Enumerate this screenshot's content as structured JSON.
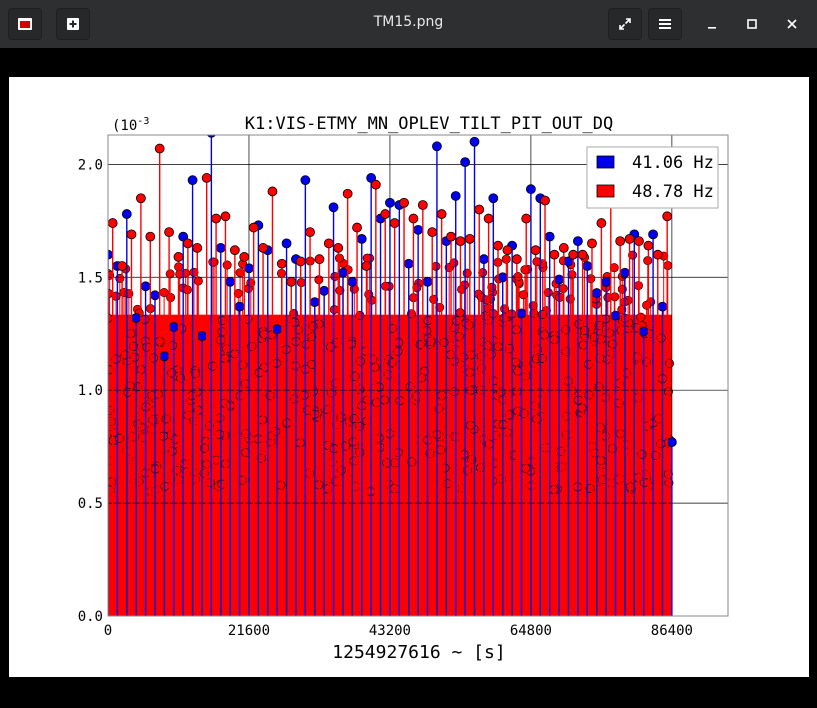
{
  "window": {
    "title": "TM15.png",
    "app_icon": "image-viewer-icon",
    "new_tab_icon": "plus-box-icon",
    "fullscreen_icon": "expand-arrows-icon",
    "menu_icon": "hamburger-icon",
    "minimize_icon": "minimize-icon",
    "maximize_icon": "maximize-icon",
    "close_icon": "close-icon"
  },
  "chart_data": {
    "type": "scatter",
    "title": "K1:VIS-ETMY_MN_OPLEV_TILT_PIT_OUT_DQ",
    "xlabel": "1254927616 ~ [s]",
    "ylabel": "",
    "y_scale_label": "(10",
    "y_scale_exp": "-3",
    "xlim": [
      0,
      95000
    ],
    "ylim": [
      0,
      0.00213
    ],
    "xticks": [
      0,
      21600,
      43200,
      64800,
      86400
    ],
    "xtick_labels": [
      "0",
      "21600",
      "43200",
      "64800",
      "86400"
    ],
    "yticks": [
      0,
      0.0005,
      0.001,
      0.0015,
      0.002
    ],
    "ytick_labels": [
      "0.0",
      "0.5",
      "1.0",
      "1.5",
      "2.0"
    ],
    "grid": true,
    "legend_position": "top-right",
    "style": "stem",
    "series": [
      {
        "name": "41.06 Hz",
        "color": "#0000ee",
        "x": [
          0,
          1440,
          2880,
          4320,
          5760,
          7200,
          8640,
          10080,
          11520,
          12960,
          14400,
          15840,
          17280,
          18720,
          20160,
          21600,
          23040,
          24480,
          25920,
          27360,
          28800,
          30240,
          31680,
          33120,
          34560,
          36000,
          37440,
          38880,
          40320,
          41760,
          43200,
          44640,
          46080,
          47520,
          48960,
          50400,
          51840,
          53280,
          54720,
          56160,
          57600,
          59040,
          60480,
          61920,
          63360,
          64800,
          66240,
          67680,
          69120,
          70560,
          72000,
          73440,
          74880,
          76320,
          77760,
          79200,
          80640,
          82080,
          83520,
          84960,
          86400
        ],
        "y": [
          0.0016,
          0.00155,
          0.00178,
          0.00132,
          0.00146,
          0.00142,
          0.00115,
          0.00128,
          0.00168,
          0.00193,
          0.00124,
          0.00214,
          0.00163,
          0.00148,
          0.00137,
          0.00154,
          0.00173,
          0.00162,
          0.00127,
          0.00165,
          0.00158,
          0.00193,
          0.00139,
          0.00144,
          0.00181,
          0.00152,
          0.00148,
          0.00167,
          0.00194,
          0.00176,
          0.00183,
          0.00182,
          0.00156,
          0.00171,
          0.00148,
          0.00208,
          0.00166,
          0.00186,
          0.00201,
          0.0021,
          0.00158,
          0.00185,
          0.0015,
          0.00164,
          0.00134,
          0.00189,
          0.00185,
          0.00168,
          0.00149,
          0.00157,
          0.00166,
          0.00155,
          0.00143,
          0.00148,
          0.00133,
          0.00152,
          0.00169,
          0.00126,
          0.00169,
          0.00137,
          0.00077
        ]
      },
      {
        "name": "48.78 Hz",
        "color": "#ff0000",
        "x": [
          720,
          2160,
          3600,
          5040,
          6480,
          7920,
          9360,
          10800,
          12240,
          13680,
          15120,
          16560,
          18000,
          19440,
          20880,
          22320,
          23760,
          25200,
          26640,
          28080,
          29520,
          30960,
          32400,
          33840,
          35280,
          36720,
          38160,
          39600,
          41040,
          42480,
          43920,
          45360,
          46800,
          48240,
          49680,
          51120,
          52560,
          54000,
          55440,
          56880,
          58320,
          59760,
          61200,
          62640,
          64080,
          65520,
          66960,
          68400,
          69840,
          71280,
          72720,
          74160,
          75600,
          77040,
          78480,
          79920,
          81360,
          82800,
          84240,
          85680
        ],
        "y": [
          0.00174,
          0.00155,
          0.00169,
          0.00185,
          0.00168,
          0.00207,
          0.0017,
          0.00159,
          0.00165,
          0.00163,
          0.00194,
          0.00176,
          0.00177,
          0.00162,
          0.00159,
          0.00172,
          0.00163,
          0.00188,
          0.00156,
          0.00148,
          0.00157,
          0.0017,
          0.00158,
          0.00165,
          0.00163,
          0.00187,
          0.00172,
          0.00155,
          0.00191,
          0.00178,
          0.00174,
          0.00183,
          0.00176,
          0.00182,
          0.0017,
          0.00178,
          0.00168,
          0.00166,
          0.00167,
          0.0018,
          0.00176,
          0.00164,
          0.00162,
          0.00158,
          0.00176,
          0.00162,
          0.00184,
          0.0016,
          0.00163,
          0.0016,
          0.0016,
          0.00165,
          0.00174,
          0.00192,
          0.00166,
          0.00167,
          0.00166,
          0.00164,
          0.0016,
          0.00177
        ]
      }
    ],
    "background_band": {
      "color": "#ff0000",
      "dot_range": [
        0.00055,
        0.0016
      ]
    }
  }
}
